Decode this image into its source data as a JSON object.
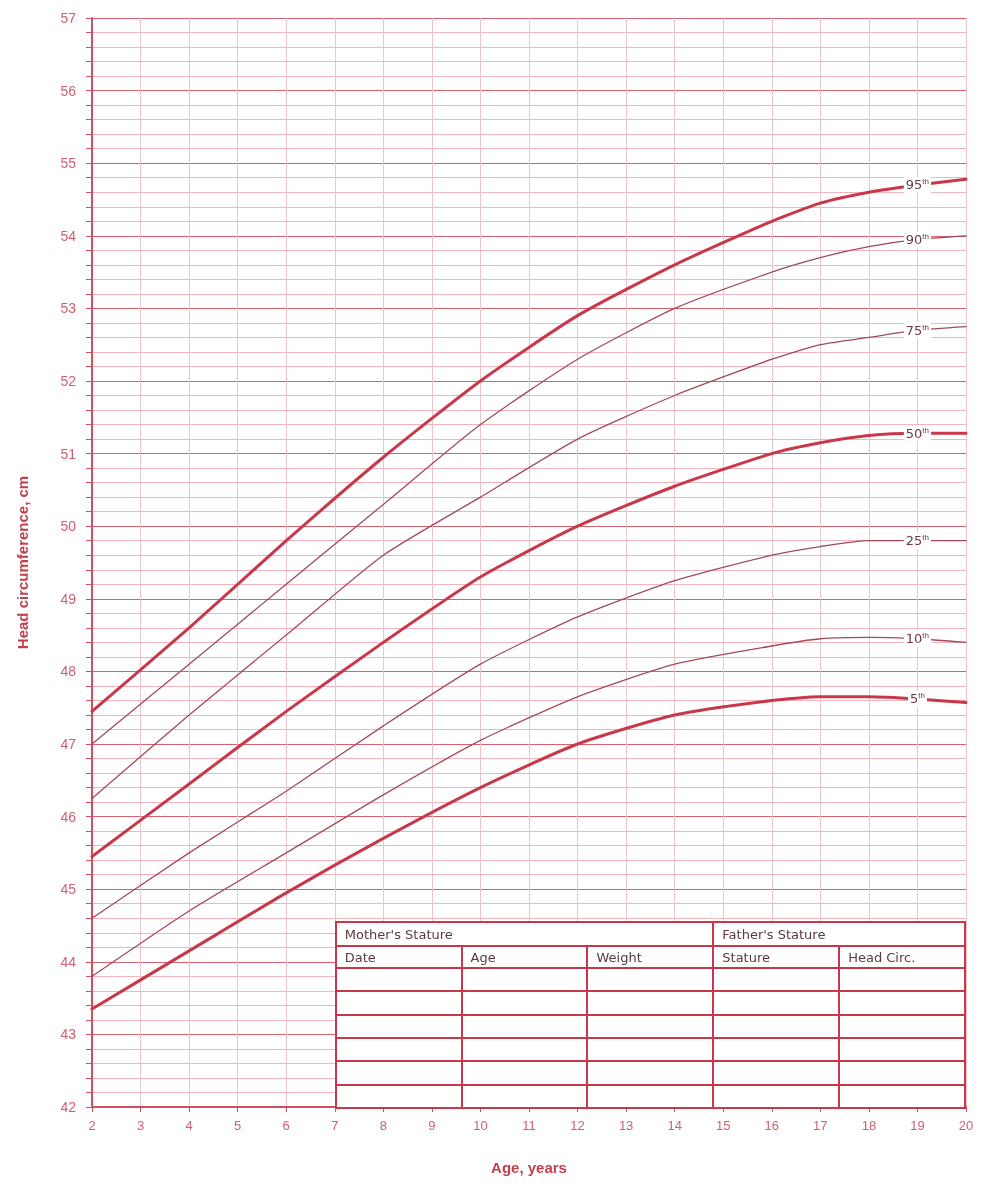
{
  "chart_data": {
    "type": "line",
    "xlabel": "Age, years",
    "ylabel": "Head circumference, cm",
    "x": [
      2,
      4,
      6,
      8,
      10,
      12,
      14,
      16,
      17,
      18,
      19,
      20
    ],
    "series": [
      {
        "name": "95$^{th}$",
        "color": "#c8384a",
        "values": [
          47.45,
          48.6,
          49.8,
          50.95,
          52.0,
          52.9,
          53.6,
          54.2,
          54.45,
          54.6,
          54.7,
          54.78
        ]
      },
      {
        "name": "90$^{th}$",
        "color": "#a34a5a",
        "values": [
          47.0,
          48.1,
          49.2,
          50.3,
          51.4,
          52.3,
          53.0,
          53.5,
          53.7,
          53.85,
          53.95,
          54.0
        ]
      },
      {
        "name": "75$^{th}$",
        "color": "#a34a5a",
        "values": [
          46.25,
          47.4,
          48.5,
          49.6,
          50.4,
          51.2,
          51.8,
          52.3,
          52.5,
          52.6,
          52.7,
          52.75
        ]
      },
      {
        "name": "50$^{th}$",
        "color": "#c8384a",
        "values": [
          45.45,
          46.45,
          47.45,
          48.4,
          49.3,
          50.0,
          50.55,
          51.0,
          51.15,
          51.25,
          51.28,
          51.28
        ]
      },
      {
        "name": "25$^{th}$",
        "color": "#a34a5a",
        "values": [
          44.6,
          45.5,
          46.35,
          47.25,
          48.1,
          48.75,
          49.25,
          49.6,
          49.72,
          49.8,
          49.8,
          49.8
        ]
      },
      {
        "name": "10$^{th}$",
        "color": "#a34a5a",
        "values": [
          43.8,
          44.7,
          45.5,
          46.3,
          47.05,
          47.65,
          48.1,
          48.35,
          48.45,
          48.47,
          48.45,
          48.4
        ]
      },
      {
        "name": "5$^{th}$",
        "color": "#c8384a",
        "values": [
          43.35,
          44.15,
          44.95,
          45.7,
          46.4,
          47.0,
          47.4,
          47.6,
          47.65,
          47.65,
          47.62,
          47.57
        ]
      }
    ],
    "xlim": [
      2,
      20
    ],
    "xticks": [
      2,
      3,
      4,
      5,
      6,
      7,
      8,
      9,
      10,
      11,
      12,
      13,
      14,
      15,
      16,
      17,
      18,
      19,
      20
    ],
    "ylim": [
      42,
      57
    ],
    "yticks": [
      42,
      {
        "value": 42.2,
        "label": null
      },
      {
        "value": 42.4,
        "label": null
      },
      {
        "value": 42.6,
        "label": null
      },
      {
        "value": 42.8,
        "label": null
      },
      43,
      {
        "value": 43.2,
        "label": null
      },
      {
        "value": 43.4,
        "label": null
      },
      {
        "value": 43.6,
        "label": null
      },
      {
        "value": 43.8,
        "label": null
      },
      44,
      {
        "value": 44.2,
        "label": null
      },
      {
        "value": 44.4,
        "label": null
      },
      {
        "value": 44.6,
        "label": null
      },
      {
        "value": 44.8,
        "label": null
      },
      45,
      {
        "value": 45.2,
        "label": null
      },
      {
        "value": 45.4,
        "label": null
      },
      {
        "value": 45.6,
        "label": null
      },
      {
        "value": 45.8,
        "label": null
      },
      46,
      {
        "value": 46.2,
        "label": null
      },
      {
        "value": 46.4,
        "label": null
      },
      {
        "value": 46.6,
        "label": null
      },
      {
        "value": 46.8,
        "label": null
      },
      47,
      {
        "value": 47.2,
        "label": null
      },
      {
        "value": 47.4,
        "label": null
      },
      {
        "value": 47.6,
        "label": null
      },
      {
        "value": 47.8,
        "label": null
      },
      48,
      {
        "value": 48.2,
        "label": null
      },
      {
        "value": 48.4,
        "label": null
      },
      {
        "value": 48.6,
        "label": null
      },
      {
        "value": 48.8,
        "label": null
      },
      49,
      {
        "value": 49.2,
        "label": null
      },
      {
        "value": 49.4,
        "label": null
      },
      {
        "value": 49.6,
        "label": null
      },
      {
        "value": 49.8,
        "label": null
      },
      50,
      {
        "value": 50.2,
        "label": null
      },
      {
        "value": 50.4,
        "label": null
      },
      {
        "value": 50.6,
        "label": null
      },
      {
        "value": 50.8,
        "label": null
      },
      51,
      {
        "value": 51.2,
        "label": null
      },
      {
        "value": 51.4,
        "label": null
      },
      {
        "value": 51.6,
        "label": null
      },
      {
        "value": 51.8,
        "label": null
      },
      52,
      {
        "value": 52.2,
        "label": null
      },
      {
        "value": 52.4,
        "label": null
      },
      {
        "value": 52.6,
        "label": null
      },
      {
        "value": 52.8,
        "label": null
      },
      53,
      {
        "value": 53.2,
        "label": null
      },
      {
        "value": 53.4,
        "label": null
      },
      {
        "value": 53.6,
        "label": null
      },
      {
        "value": 53.8,
        "label": null
      },
      54,
      {
        "value": 54.2,
        "label": null
      },
      {
        "value": 54.4,
        "label": null
      },
      {
        "value": 54.6,
        "label": null
      },
      {
        "value": 54.8,
        "label": null
      },
      55,
      {
        "value": 55.2,
        "label": null
      },
      {
        "value": 55.4,
        "label": null
      },
      {
        "value": 55.6,
        "label": null
      },
      {
        "value": 55.8,
        "label": null
      },
      56,
      {
        "value": 56.2,
        "label": null
      },
      {
        "value": 56.4,
        "label": null
      },
      {
        "value": 56.6,
        "label": null
      },
      {
        "value": 56.8,
        "label": null
      },
      57
    ],
    "grid": true,
    "legend": false,
    "marker": "none",
    "line_style": "solid",
    "annotations": [
      "Mother's Stature",
      "Father's Stature",
      "Date",
      "Age",
      "Weight",
      "Stature",
      "Head Circ."
    ]
  }
}
